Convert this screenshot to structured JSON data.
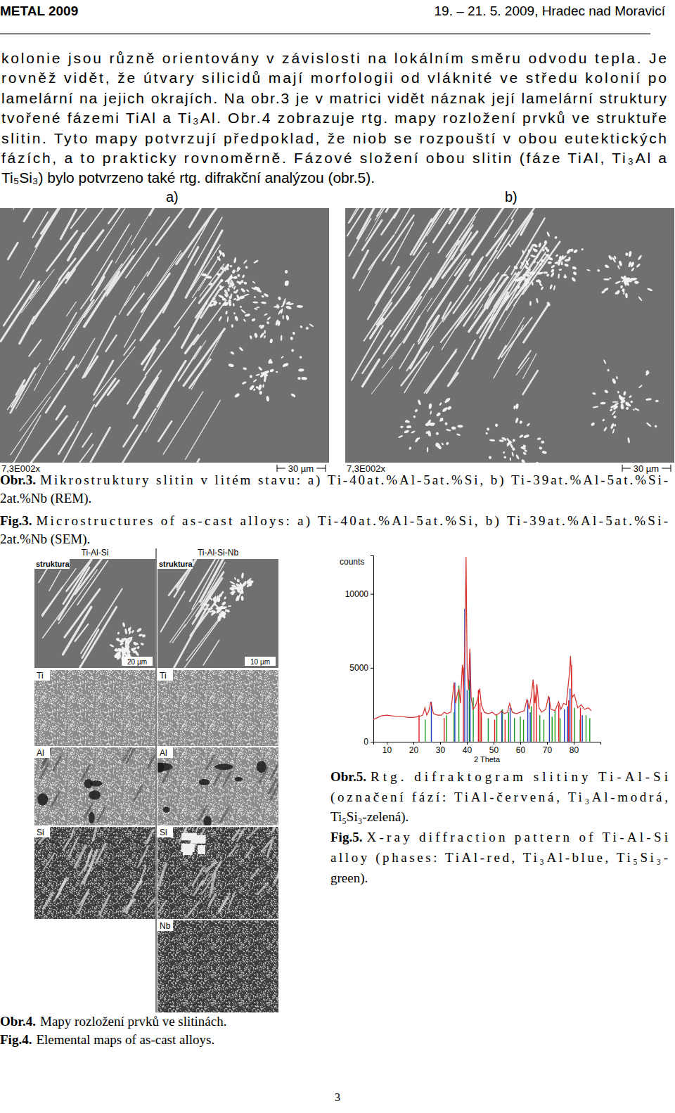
{
  "header": {
    "left": "METAL 2009",
    "right": "19. – 21. 5. 2009, Hradec nad Moravicí"
  },
  "body": {
    "lines": [
      "kolonie jsou různě orientovány v závislosti na lokálním směru odvodu tepla. Je",
      "rovněž vidět, že útvary silicidů mají morfologii od vláknité ve středu kolonií po",
      "lamelární na jejich okrajích. Na obr.3 je v matrici vidět náznak její lamelární struktury",
      "tvořené fázemi TiAl a Ti₃Al. Obr.4 zobrazuje rtg. mapy rozložení prvků ve struktuře",
      "slitin. Tyto mapy potvrzují předpoklad, že niob se rozpouští v obou eutektických",
      "fázích, a to prakticky rovnoměrně. Fázové složení obou slitin (fáze TiAl, Ti₃Al a",
      "Ti₅Si₃) bylo potvrzeno také rtg. difrakční analýzou (obr.5)."
    ]
  },
  "figure3": {
    "panel_labels": [
      "a)",
      "b)"
    ],
    "magnification": [
      "7,3E002x",
      "7,3E002x"
    ],
    "scale_bar": [
      "30 µm",
      "30 µm"
    ],
    "captions": [
      {
        "label": "Obr.3.",
        "lines": [
          "Mikrostruktury slitin v litém stavu: a) Ti-40at.%Al-5at.%Si, b) Ti-39at.%Al-5at.%Si-",
          "2at.%Nb (REM)."
        ]
      },
      {
        "label": "Fig.3.",
        "lines": [
          "Microstructures of as-cast alloys: a) Ti-40at.%Al-5at.%Si, b) Ti-39at.%Al-5at.%Si-",
          "2at.%Nb (SEM)."
        ]
      }
    ]
  },
  "figure4": {
    "columns": [
      "Ti-Al-Si",
      "Ti-Al-Si-Nb"
    ],
    "structure_label": "struktura",
    "rows": [
      "Ti",
      "Al",
      "Si",
      "Nb"
    ],
    "scale_bars": [
      "20 µm",
      "10 µm"
    ],
    "captions": [
      {
        "label": "Obr.4.",
        "lines": [
          "Mapy rozložení prvků ve slitinách."
        ]
      },
      {
        "label": "Fig.4.",
        "lines": [
          "Elemental maps of as-cast alloys."
        ]
      }
    ]
  },
  "chart_data": {
    "type": "line",
    "xlabel": "2 Theta",
    "ylabel": "counts",
    "xlim": [
      5,
      90
    ],
    "ylim": [
      0,
      12600
    ],
    "xticks": [
      10,
      20,
      30,
      40,
      50,
      60,
      70,
      80
    ],
    "yticks": [
      0,
      5000,
      10000
    ],
    "series": [
      {
        "type": "stem",
        "color": "#1a9a1a",
        "x": [
          24.4,
          32.4,
          35.2,
          37.0,
          40.9,
          42.4,
          45.4,
          48.0,
          51.2,
          53.3,
          55.6,
          57.8,
          60.0,
          61.2,
          64.1,
          67.3,
          68.8,
          71.9,
          73.0,
          74.9,
          80.3,
          82.4,
          84.6,
          86.0
        ],
        "values": [
          1500,
          1800,
          2000,
          3800,
          4200,
          3000,
          1700,
          1600,
          1800,
          2200,
          2000,
          1600,
          1700,
          1500,
          2400,
          1800,
          1500,
          1700,
          2100,
          1600,
          2300,
          1500,
          1800,
          1600
        ]
      },
      {
        "type": "stem",
        "color": "#e31a1c",
        "x": [
          22.1,
          31.5,
          38.7,
          44.3,
          44.9,
          45.4,
          50.4,
          54.3,
          65.1,
          66.0,
          74.4,
          78.1,
          79.2,
          82.5
        ],
        "values": [
          1800,
          1600,
          5000,
          3500,
          2600,
          2000,
          1500,
          1500,
          3800,
          3400,
          2500,
          2800,
          5200,
          2300
        ]
      },
      {
        "type": "stem",
        "color": "#1f3fbf",
        "x": [
          26.7,
          35.5,
          39.2,
          40.1,
          41.2,
          53.1,
          56.2,
          62.8,
          63.7,
          70.9,
          76.5,
          77.7,
          78.6,
          83.2
        ],
        "values": [
          2700,
          4000,
          9000,
          3500,
          6000,
          2100,
          2300,
          2800,
          2000,
          3000,
          2200,
          2400,
          3600,
          1800
        ]
      },
      {
        "type": "line",
        "color": "#d2302a",
        "x": [
          5,
          8,
          10,
          12,
          14,
          16,
          18,
          20,
          22,
          23.5,
          24.3,
          25,
          25.8,
          26.5,
          27.5,
          29,
          30.5,
          31.5,
          32.5,
          34,
          35.2,
          35.8,
          36.4,
          37,
          37.6,
          38.3,
          38.8,
          39.3,
          39.7,
          40.1,
          40.6,
          41.1,
          41.6,
          42.3,
          43.2,
          44.2,
          44.8,
          45.4,
          46.5,
          48,
          49.5,
          50.8,
          52,
          53,
          54,
          55.2,
          56,
          57,
          58.5,
          60,
          61.5,
          62.5,
          63.3,
          64.2,
          64.8,
          65.5,
          66.2,
          67,
          68,
          69.5,
          70.6,
          71.5,
          73,
          74.3,
          75.2,
          76.2,
          77.2,
          78.3,
          78.8,
          79.4,
          80.2,
          81.5,
          82.8,
          84,
          85.5,
          86.5
        ],
        "values": [
          1500,
          1750,
          1800,
          1750,
          1700,
          1700,
          1650,
          1650,
          1700,
          1800,
          2300,
          1800,
          2100,
          2700,
          1900,
          1800,
          1800,
          2000,
          1900,
          2000,
          4000,
          2600,
          3200,
          3600,
          2600,
          5200,
          3800,
          7000,
          12500,
          5000,
          3500,
          6300,
          3000,
          2200,
          2400,
          3000,
          3600,
          2500,
          2000,
          1900,
          2000,
          1800,
          1900,
          2100,
          1900,
          2000,
          2600,
          2000,
          1900,
          2000,
          2100,
          2900,
          2200,
          3200,
          4200,
          2600,
          3900,
          2300,
          2000,
          2200,
          3100,
          2200,
          2100,
          2700,
          2200,
          2600,
          2500,
          4500,
          5800,
          3000,
          3200,
          2300,
          2500,
          2200,
          2300,
          2100
        ]
      }
    ]
  },
  "figure5": {
    "captions": [
      {
        "label": "Obr.5.",
        "lines": [
          "Rtg. difraktogram slitiny Ti-Al-Si",
          "(označení fází: TiAl-červená, Ti₃Al-modrá,",
          "Ti₅Si₃-zelená)."
        ]
      },
      {
        "label": "Fig.5.",
        "lines": [
          "X-ray diffraction pattern of Ti-Al-Si",
          "alloy (phases: TiAl-red, Ti₃Al-blue, Ti₅Si₃-",
          "green)."
        ]
      }
    ]
  },
  "page_number": 3
}
